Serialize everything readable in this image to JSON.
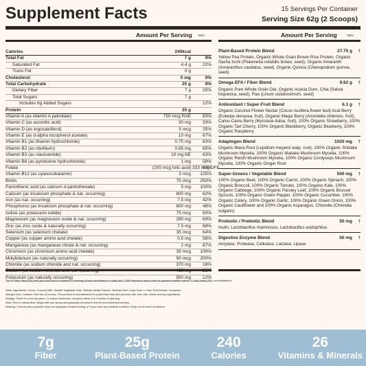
{
  "header": {
    "title": "Supplement Facts",
    "servings": "15 Servings Per Container",
    "serving_size": "Serving Size 62g (2 Scoops)"
  },
  "left_header": {
    "per_serving": "Amount Per Serving",
    "dv": "%DV"
  },
  "right_header": {
    "per_serving": "Amount Per Serving",
    "dv": "%DV"
  },
  "nutrients": [
    {
      "n": "Calories",
      "a": "240kcal",
      "p": "",
      "s": "b"
    },
    {
      "n": "Total Fat",
      "a": "7 g",
      "p": "9%",
      "s": "b"
    },
    {
      "n": "Saturated Fat",
      "a": "4.4 g",
      "p": "22%",
      "s": "i"
    },
    {
      "n": "Trans Fat",
      "a": "0 g",
      "p": "",
      "s": "i"
    },
    {
      "n": "Cholesterol",
      "a": "0 mg",
      "p": "0%",
      "s": "b"
    },
    {
      "n": "Total Carbohydrate",
      "a": "25 g",
      "p": "9%",
      "s": "b"
    },
    {
      "n": "Dietary Fiber",
      "a": "7 g",
      "p": "25%",
      "s": "i"
    },
    {
      "n": "Total Sugars",
      "a": "7 g",
      "p": "",
      "s": "i"
    },
    {
      "n": "Includes 6g Added Sugars",
      "a": "",
      "p": "12%",
      "s": "i2"
    },
    {
      "n": "Protein",
      "a": "25 g",
      "p": "",
      "s": "b"
    },
    {
      "n": "Vitamin A (as vitamin A palmitate)",
      "a": "750 mcg RAE",
      "p": "83%",
      "s": ""
    },
    {
      "n": "Vitamin C (as ascorbic acid)",
      "a": "30 mg",
      "p": "33%",
      "s": ""
    },
    {
      "n": "Vitamin D (as ergocalciferol)",
      "a": "5 mcg",
      "p": "25%",
      "s": ""
    },
    {
      "n": "Vitamin E (as d-alpha tocopherol acetate)",
      "a": "10 mg",
      "p": "67%",
      "s": ""
    },
    {
      "n": "Vitamin B1 (as thiamin hydrochloride)",
      "a": "0.75 mg",
      "p": "63%",
      "s": ""
    },
    {
      "n": "Vitamin B2 (as riboflavin)",
      "a": "0.85 mg",
      "p": "65%",
      "s": ""
    },
    {
      "n": "Vitamin B3 (as niacinamide)",
      "a": "10 mg NE",
      "p": "63%",
      "s": ""
    },
    {
      "n": "Vitamin B6 (as pyridoxine hydrochloride)",
      "a": "1 mg",
      "p": "59%",
      "s": ""
    },
    {
      "n": "Folate",
      "a": "(200 mcg folic acid) 333 mcg DFE",
      "p": "83%",
      "s": ""
    },
    {
      "n": "Vitamin B12 (as cyanocobalamin)",
      "a": "3 mcg",
      "p": "125%",
      "s": ""
    },
    {
      "n": "Biotin",
      "a": "75 mcg",
      "p": "250%",
      "s": ""
    },
    {
      "n": "Pantothenic acid (as calcium d-pantothenate)",
      "a": "5 mg",
      "p": "100%",
      "s": ""
    },
    {
      "n": "Calcium (as tricalcium phosphate & nat. occurring)",
      "a": "800 mg",
      "p": "62%",
      "s": ""
    },
    {
      "n": "Iron (as nat. occurring)",
      "a": "7.5 mg",
      "p": "42%",
      "s": ""
    },
    {
      "n": "Phosphorus (as tricalcium phosphate & nat. occurring)",
      "a": "600 mg",
      "p": "48%",
      "s": ""
    },
    {
      "n": "Iodine (as potassium iodide)",
      "a": "75 mcg",
      "p": "50%",
      "s": ""
    },
    {
      "n": "Magnesium (as magnesium oxide & nat. occurring)",
      "a": "290 mg",
      "p": "69%",
      "s": ""
    },
    {
      "n": "Zinc (as zinc oxide & naturally occurring)",
      "a": "7.5 mg",
      "p": "68%",
      "s": ""
    },
    {
      "n": "Selenium (as selenium chelate)",
      "a": "35 mcg",
      "p": "64%",
      "s": ""
    },
    {
      "n": "Copper (as copper amino acid chelate)",
      "a": "0.5 mg",
      "p": "56%",
      "s": ""
    },
    {
      "n": "Manganese (as manganese citrate & nat. occurring)",
      "a": "2 mg",
      "p": "87%",
      "s": ""
    },
    {
      "n": "Chromium (as chromium amino acid chelate)",
      "a": "35 mcg",
      "p": "100%",
      "s": ""
    },
    {
      "n": "Molybdenum (as naturally occurring)",
      "a": "90 mcg",
      "p": "200%",
      "s": ""
    },
    {
      "n": "Chloride (as sodium chloride and nat. occurring)",
      "a": "370 mg",
      "p": "16%",
      "s": ""
    },
    {
      "n": "Sodium (as sodium chloride and nat. occurring)",
      "a": "480 mg",
      "p": "21%",
      "s": ""
    },
    {
      "n": "Potassium (as naturally occurring)",
      "a": "550 mg",
      "p": "12%",
      "s": ""
    }
  ],
  "blends": [
    {
      "name": "Plant-Based Protein Blend",
      "amount": "27.75 g",
      "sym": "†",
      "text": "Yellow Pea Protein, Organic Whole Grain Brown Rice Protein, Organic Sacha Inchi (Plukenetia volubilis linneo, seed), Organic Amaranth (Amaranthus caudatus, seed), Organic Quinoa (Chenopodium quinoa, seed)"
    },
    {
      "name": "Omega EFA / Fiber Blend",
      "amount": "9.62 g",
      "sym": "†",
      "text": "Organic Pure Whole Grain Oat, Organic Acacia Gum, Chia (Salvia hispanica, seed), Flax (Linum usitatissimum, seed)"
    },
    {
      "name": "Antioxidant / Super-Fruit Blend",
      "amount": "6.1 g",
      "sym": "†",
      "text": "Organic Coconut Flower Nectar (Cocos nucifera,flower bud) Acai Berry (Euterpe oleracea, fruit), Organic Maqui Berry (Aristotelia chilensis, fruit), Camu-Camu Berry (Myrciaria dubia, fruit), 100% Organic Strawberry, 100% Organic Tart Cherry, 100% Organic Blackberry, Organic Blueberry, 100% Organic Raspberry"
    },
    {
      "name": "Adaptogen Blend",
      "amount": "1020 mg",
      "sym": "†",
      "text": "Organic Maca Root (Lepidium meyenii walp, root), 100% Organic Shiitake Mushroom Mycelia, 100% Organic Maitake Mushroom Mycelia, 100% Organic Reishi Mushroom Mycelia, 100% Organic Cordyceps Mushroom Mycelia, 100% Organic Ginger Root"
    },
    {
      "name": "Super-Greens / Vegetable Blend",
      "amount": "500 mg",
      "sym": "†",
      "text": "100% Organic Beet, 100% Organic Carrot, 100% Organic Spinach, 100% Organic Broccoli, 100% Organic Tomato, 100% Organic Kale, 100% Organic Cabbage, 100% Organic Parsley Leaf, 100% Organic Brussel Sprouts, 100% Organic Green Pepper, 100% Organic Cucumber, 100% Organic Celery, 100% Organic Garlic, 100% Organic Green Onion, 100% Organic Cauliflower and 100% Organic Asparagus, Chlorella (Chlorella vulgaris)"
    },
    {
      "name": "Probiotic / Prebiotic Blend",
      "amount": "50 mg",
      "sym": "†",
      "text": "Inulin, Lactobacillus rhamnosus, Lactobacillus acidophilus"
    },
    {
      "name": "Digestive Enzyme Blend",
      "amount": "50 mg",
      "sym": "†",
      "text": "Amylase, Protease, Cellulase, Lactase, Lipase"
    }
  ],
  "footnote": {
    "dv_note": "The % Daily Value (DV) tells you how much a nutrient in a serving of food contributes to a daily diet. 2,000 calories a day is used for general nutrition advice. † Daily Value (DV) not established.",
    "other": "Other Ingredients: Cocoa, Coconut Milk, Soluble Vegetable Fiber, Natural Vanilla Flavors, Xanthan Gum, Guar Gum, Lo Han Fruit Extract, Cinnamon",
    "allergen": "Allergen Info: Contains Tree Nut (Coconut). This product is manufactured in a plant that may also process milk, tree nuts, wheat and soy ingredients.",
    "storage": "Storage: Store in a cool dry place. To ensure freshness, consume within 4 to 5 weeks of opening.",
    "note": "Note: Rich in natural fiber. Begin with one scoop and gradually increase to the full recommended serving.",
    "warning": "Warning: Consult your physician if you are pregnant, breast feeding, or if you have any medical condition. Keep out of reach of children."
  },
  "stats": [
    {
      "value": "7g",
      "label": "Fiber"
    },
    {
      "value": "25g",
      "label": "Plant-Based Protein"
    },
    {
      "value": "240",
      "label": "Calories"
    },
    {
      "value": "26",
      "label": "Vitamins & Minerals"
    }
  ],
  "colors": {
    "band": "#9fbed3",
    "ink": "#2a2320",
    "background": "#fdf6f1"
  }
}
